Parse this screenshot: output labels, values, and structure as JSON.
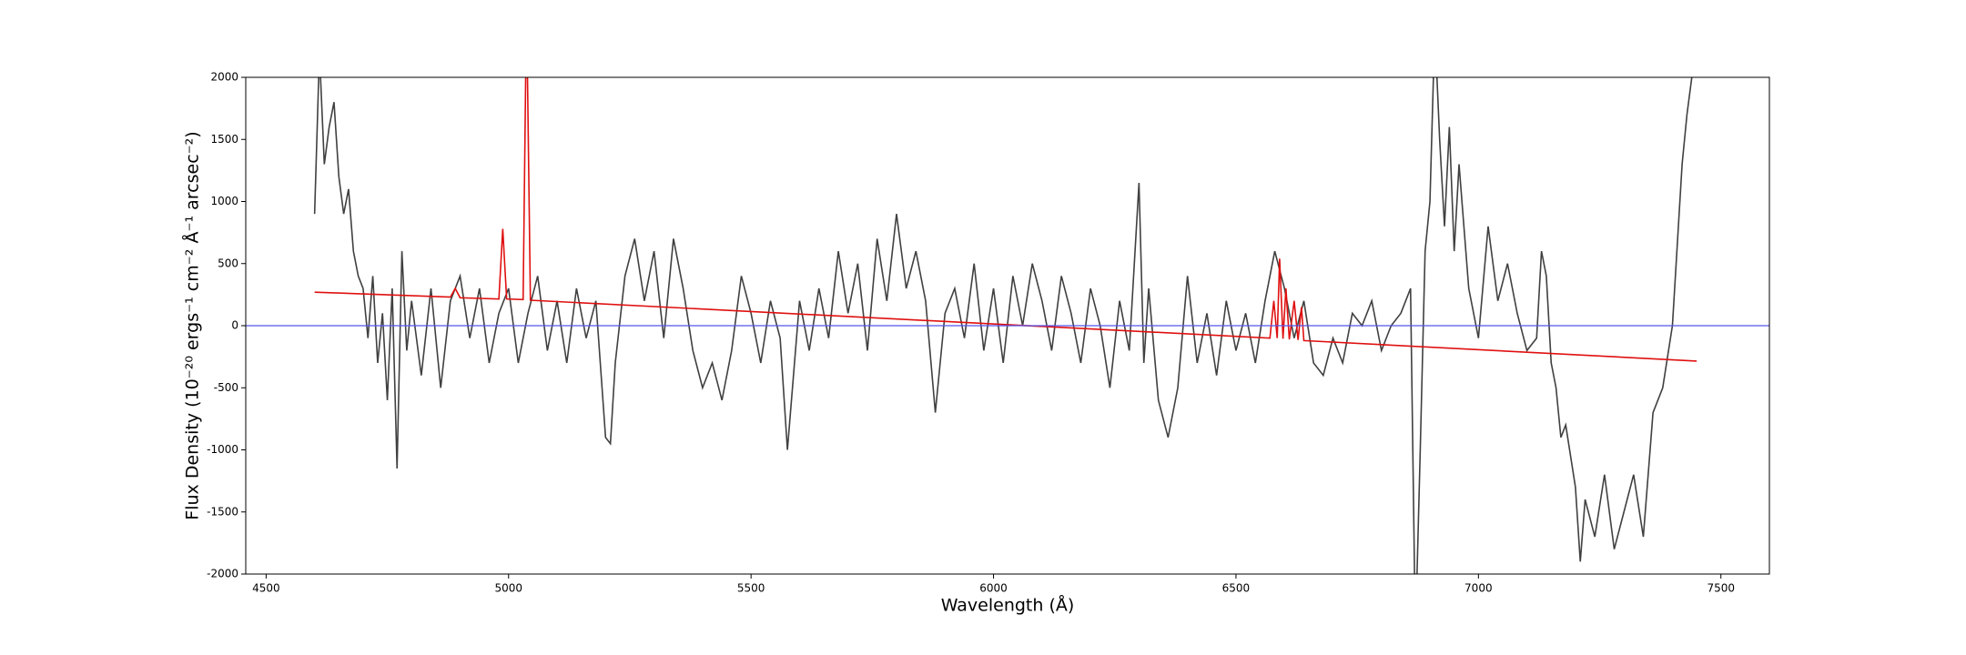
{
  "chart_data": {
    "type": "line",
    "xlabel": "Wavelength (Å)",
    "ylabel": "Flux Density (10⁻²⁰ ergs⁻¹ cm⁻² Å⁻¹ arcsec⁻²)",
    "xlim": [
      4458,
      7600
    ],
    "ylim": [
      -2000,
      2000
    ],
    "xticks": [
      4500,
      5000,
      5500,
      6000,
      6500,
      7000,
      7500
    ],
    "yticks": [
      -2000,
      -1500,
      -1000,
      -500,
      0,
      500,
      1000,
      1500,
      2000
    ],
    "hline": {
      "y": 0,
      "color": "#5555ee"
    },
    "series": [
      {
        "color": "#404040",
        "x": [
          4600,
          4610,
          4620,
          4630,
          4640,
          4650,
          4660,
          4670,
          4680,
          4690,
          4700,
          4710,
          4720,
          4730,
          4740,
          4750,
          4760,
          4770,
          4780,
          4790,
          4800,
          4820,
          4840,
          4860,
          4880,
          4900,
          4920,
          4940,
          4960,
          4980,
          5000,
          5020,
          5040,
          5060,
          5080,
          5100,
          5120,
          5140,
          5160,
          5180,
          5200,
          5210,
          5220,
          5240,
          5260,
          5280,
          5300,
          5320,
          5340,
          5360,
          5380,
          5400,
          5420,
          5440,
          5460,
          5480,
          5500,
          5520,
          5540,
          5560,
          5575,
          5600,
          5620,
          5640,
          5660,
          5680,
          5700,
          5720,
          5740,
          5760,
          5780,
          5800,
          5820,
          5840,
          5860,
          5880,
          5900,
          5920,
          5940,
          5960,
          5980,
          6000,
          6020,
          6040,
          6060,
          6080,
          6100,
          6120,
          6140,
          6160,
          6180,
          6200,
          6220,
          6240,
          6260,
          6280,
          6300,
          6310,
          6320,
          6340,
          6360,
          6380,
          6400,
          6420,
          6440,
          6460,
          6480,
          6500,
          6520,
          6540,
          6560,
          6580,
          6600,
          6620,
          6640,
          6660,
          6680,
          6700,
          6720,
          6740,
          6760,
          6780,
          6800,
          6820,
          6840,
          6860,
          6870,
          6880,
          6890,
          6900,
          6910,
          6920,
          6930,
          6940,
          6950,
          6960,
          6980,
          7000,
          7020,
          7040,
          7060,
          7080,
          7100,
          7120,
          7130,
          7140,
          7150,
          7160,
          7170,
          7180,
          7200,
          7210,
          7220,
          7240,
          7260,
          7280,
          7300,
          7320,
          7340,
          7360,
          7380,
          7400,
          7420,
          7430,
          7440,
          7450
        ],
        "values": [
          900,
          2200,
          1300,
          1600,
          1800,
          1200,
          900,
          1100,
          600,
          400,
          300,
          -100,
          400,
          -300,
          100,
          -600,
          300,
          -1150,
          600,
          -200,
          200,
          -400,
          300,
          -500,
          200,
          400,
          -100,
          300,
          -300,
          100,
          300,
          -300,
          100,
          400,
          -200,
          200,
          -300,
          300,
          -100,
          200,
          -900,
          -950,
          -300,
          400,
          700,
          200,
          600,
          -100,
          700,
          300,
          -200,
          -500,
          -300,
          -600,
          -200,
          400,
          100,
          -300,
          200,
          -100,
          -1000,
          200,
          -200,
          300,
          -100,
          600,
          100,
          500,
          -200,
          700,
          200,
          900,
          300,
          600,
          200,
          -700,
          100,
          300,
          -100,
          500,
          -200,
          300,
          -300,
          400,
          0,
          500,
          200,
          -200,
          400,
          100,
          -300,
          300,
          0,
          -500,
          200,
          -200,
          1150,
          -300,
          300,
          -600,
          -900,
          -500,
          400,
          -300,
          100,
          -400,
          200,
          -200,
          100,
          -300,
          200,
          600,
          300,
          -100,
          200,
          -300,
          -400,
          -100,
          -300,
          100,
          0,
          200,
          -200,
          0,
          100,
          300,
          -2500,
          -1000,
          600,
          1000,
          2400,
          1500,
          800,
          1600,
          600,
          1300,
          300,
          -100,
          800,
          200,
          500,
          100,
          -200,
          -100,
          600,
          400,
          -300,
          -500,
          -900,
          -800,
          -1300,
          -1900,
          -1400,
          -1700,
          -1200,
          -1800,
          -1500,
          -1200,
          -1700,
          -700,
          -500,
          0,
          1300,
          1700,
          2000,
          2300
        ]
      },
      {
        "color": "#e01010",
        "x": [
          4600,
          4880,
          4890,
          4900,
          4980,
          4988,
          4996,
          5030,
          5037,
          5045,
          6570,
          6578,
          6585,
          6590,
          6597,
          6603,
          6610,
          6620,
          6628,
          6635,
          6640,
          7450
        ],
        "values": [
          270,
          230,
          300,
          225,
          215,
          780,
          215,
          210,
          2600,
          205,
          -100,
          200,
          -100,
          540,
          -105,
          300,
          -110,
          200,
          -115,
          150,
          -120,
          -285
        ]
      }
    ]
  }
}
